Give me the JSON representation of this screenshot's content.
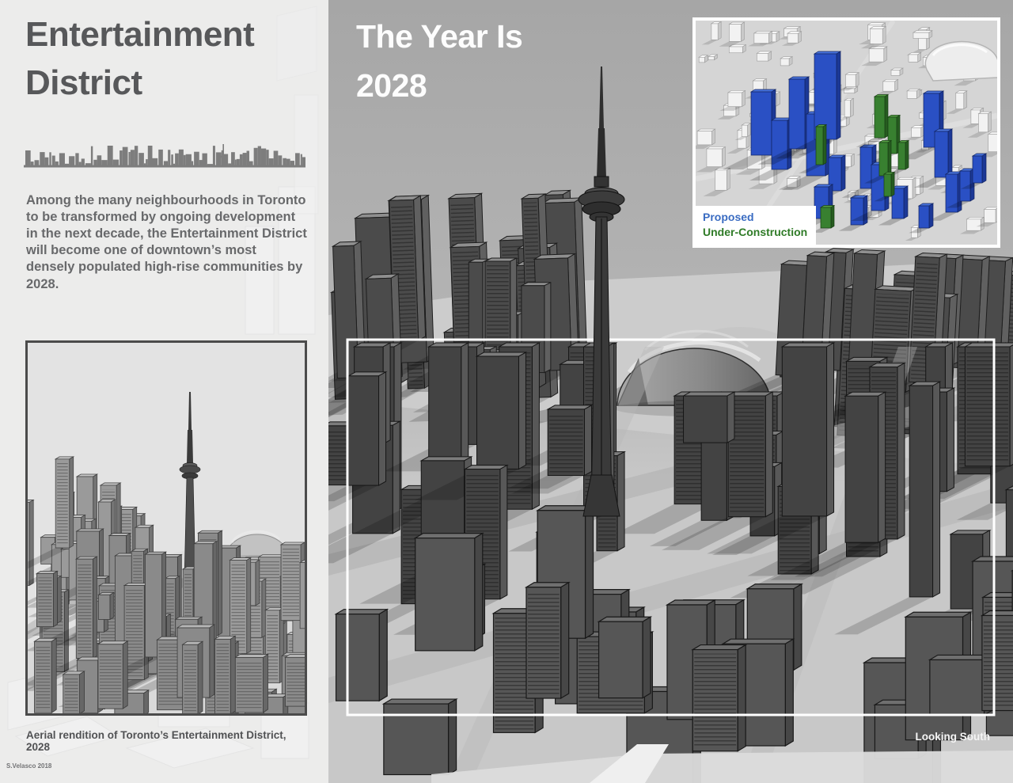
{
  "poster": {
    "left_panel": {
      "title": "Entertainment District",
      "intro": "Among the many neighbourhoods in Toronto to be transformed by ongoing development in the next decade, the Entertainment District will become one of downtown’s most densely populated high-rise communities by 2028.",
      "thumbnail_caption": "Aerial rendition of Toronto’s Entertainment District, 2028",
      "credit": "S.Velasco 2018"
    },
    "main_view": {
      "headline": "The Year Is 2028",
      "direction_label": "Looking South"
    },
    "inset_map": {
      "legend": [
        {
          "label": "Proposed",
          "color": "#3a6cc2"
        },
        {
          "label": "Under-Construction",
          "color": "#2f7b27"
        }
      ]
    },
    "colors": {
      "proposed_blue": "#2a50c4",
      "under_construction_green": "#388030",
      "panel_background": "#ececeb",
      "sky_gray": "#a8a8a8"
    }
  }
}
